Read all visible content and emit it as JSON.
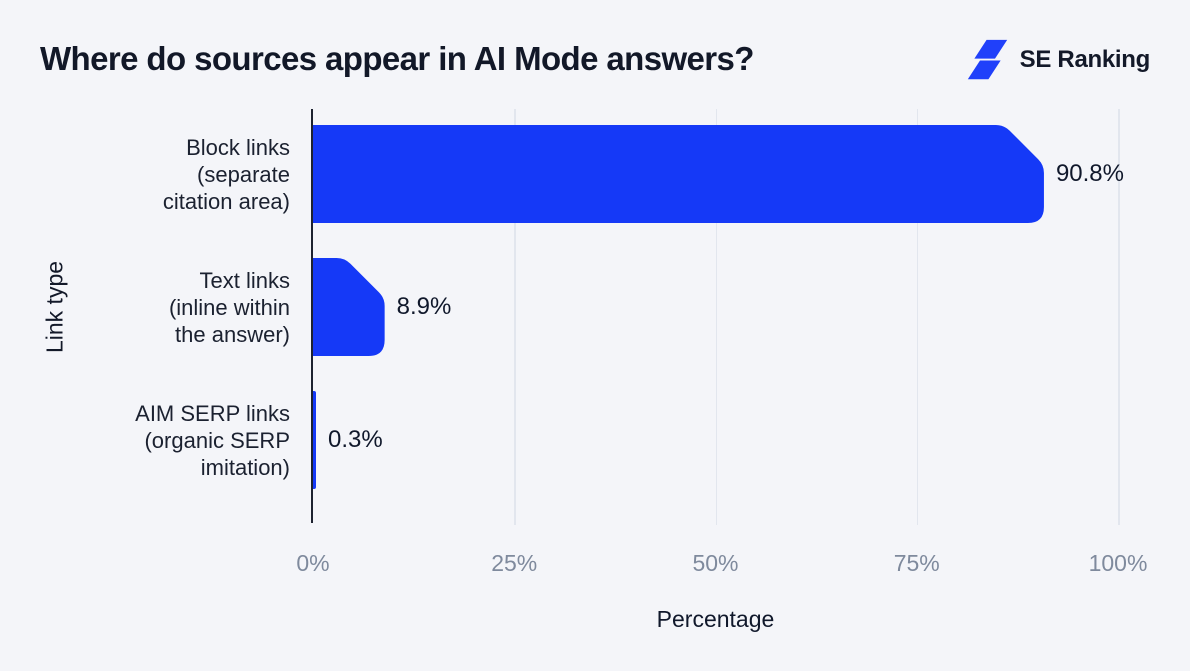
{
  "brand": {
    "name": "SE Ranking",
    "logo_color": "#2040fa"
  },
  "colors": {
    "background": "#f4f5f9",
    "bar": "#1539f7",
    "axis": "#1d2230",
    "gridline": "#e2e6ee",
    "tick_text": "#7f8a9d",
    "text_dark": "#10182b"
  },
  "chart_data": {
    "type": "bar",
    "orientation": "horizontal",
    "title": "Where do sources appear in AI Mode answers?",
    "xlabel": "Percentage",
    "ylabel": "Link type",
    "categories": [
      "Block links (separate citation area)",
      "Text links (inline within the answer)",
      "AIM SERP links (organic SERP imitation)"
    ],
    "category_lines": [
      [
        "Block links",
        "(separate",
        "citation area)"
      ],
      [
        "Text links",
        "(inline within",
        "the answer)"
      ],
      [
        "AIM SERP links",
        "(organic SERP",
        "imitation)"
      ]
    ],
    "values": [
      90.8,
      8.9,
      0.3
    ],
    "value_labels": [
      "90.8%",
      "8.9%",
      "0.3%"
    ],
    "x_ticks": [
      "0%",
      "25%",
      "50%",
      "75%",
      "100%"
    ],
    "xlim": [
      0,
      100
    ],
    "grid": "vertical",
    "legend": "none",
    "bar_color": "#1539f7"
  }
}
